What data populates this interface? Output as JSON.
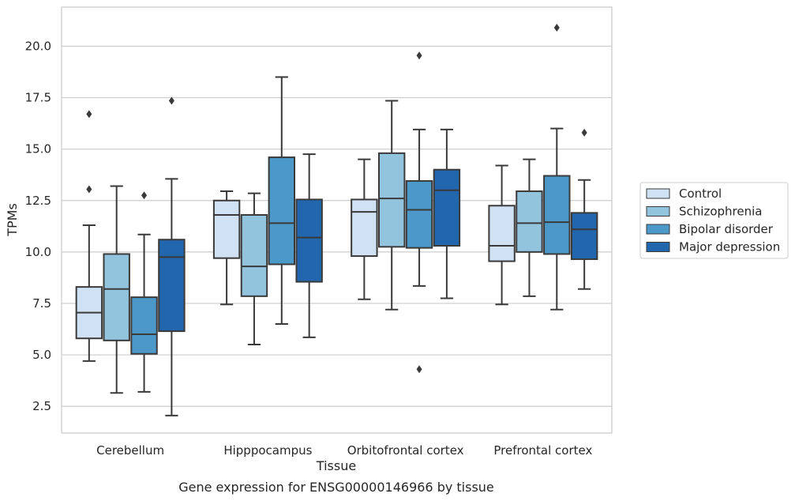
{
  "chart_data": {
    "type": "box",
    "xlabel": "Tissue",
    "ylabel": "TPMs",
    "caption": "Gene expression for ENSG00000146966 by tissue",
    "ylim": [
      1.2,
      21.9
    ],
    "yticks": [
      "2.5",
      "5.0",
      "7.5",
      "10.0",
      "12.5",
      "15.0",
      "17.5",
      "20.0"
    ],
    "grid": "horizontal",
    "legend_position": "right",
    "categories": [
      "Cerebellum",
      "Hipppocampus",
      "Orbitofrontal cortex",
      "Prefrontal cortex"
    ],
    "series": [
      {
        "name": "Control",
        "color": "#cfe1f2",
        "boxes": [
          {
            "whislo": 4.7,
            "q1": 5.8,
            "med": 7.05,
            "q3": 8.3,
            "whishi": 11.3,
            "fliers": [
              13.05,
              16.7
            ]
          },
          {
            "whislo": 7.45,
            "q1": 9.7,
            "med": 11.8,
            "q3": 12.5,
            "whishi": 12.95,
            "fliers": []
          },
          {
            "whislo": 7.7,
            "q1": 9.8,
            "med": 11.95,
            "q3": 12.55,
            "whishi": 14.5,
            "fliers": []
          },
          {
            "whislo": 7.45,
            "q1": 9.55,
            "med": 10.3,
            "q3": 12.25,
            "whishi": 14.2,
            "fliers": []
          }
        ]
      },
      {
        "name": "Schizophrenia",
        "color": "#93c4de",
        "boxes": [
          {
            "whislo": 3.15,
            "q1": 5.7,
            "med": 8.2,
            "q3": 9.9,
            "whishi": 13.2,
            "fliers": []
          },
          {
            "whislo": 5.5,
            "q1": 7.85,
            "med": 9.3,
            "q3": 11.8,
            "whishi": 12.85,
            "fliers": []
          },
          {
            "whislo": 7.2,
            "q1": 10.25,
            "med": 12.6,
            "q3": 14.8,
            "whishi": 17.35,
            "fliers": []
          },
          {
            "whislo": 7.85,
            "q1": 10.0,
            "med": 11.4,
            "q3": 12.95,
            "whishi": 14.5,
            "fliers": []
          }
        ]
      },
      {
        "name": "Bipolar disorder",
        "color": "#4b98c9",
        "boxes": [
          {
            "whislo": 3.2,
            "q1": 5.05,
            "med": 6.0,
            "q3": 7.8,
            "whishi": 10.85,
            "fliers": [
              12.75
            ]
          },
          {
            "whislo": 6.5,
            "q1": 9.4,
            "med": 11.4,
            "q3": 14.6,
            "whishi": 18.5,
            "fliers": []
          },
          {
            "whislo": 8.35,
            "q1": 10.2,
            "med": 12.05,
            "q3": 13.45,
            "whishi": 15.95,
            "fliers": [
              4.3,
              19.55
            ]
          },
          {
            "whislo": 7.2,
            "q1": 9.9,
            "med": 11.45,
            "q3": 13.7,
            "whishi": 16.0,
            "fliers": [
              20.9
            ]
          }
        ]
      },
      {
        "name": "Major depression",
        "color": "#2267ad",
        "boxes": [
          {
            "whislo": 2.05,
            "q1": 6.15,
            "med": 9.75,
            "q3": 10.6,
            "whishi": 13.55,
            "fliers": [
              17.35
            ]
          },
          {
            "whislo": 5.85,
            "q1": 8.55,
            "med": 10.7,
            "q3": 12.55,
            "whishi": 14.75,
            "fliers": []
          },
          {
            "whislo": 7.75,
            "q1": 10.3,
            "med": 13.0,
            "q3": 14.0,
            "whishi": 15.95,
            "fliers": []
          },
          {
            "whislo": 8.2,
            "q1": 9.65,
            "med": 11.1,
            "q3": 11.9,
            "whishi": 13.5,
            "fliers": [
              15.8
            ]
          }
        ]
      }
    ]
  }
}
